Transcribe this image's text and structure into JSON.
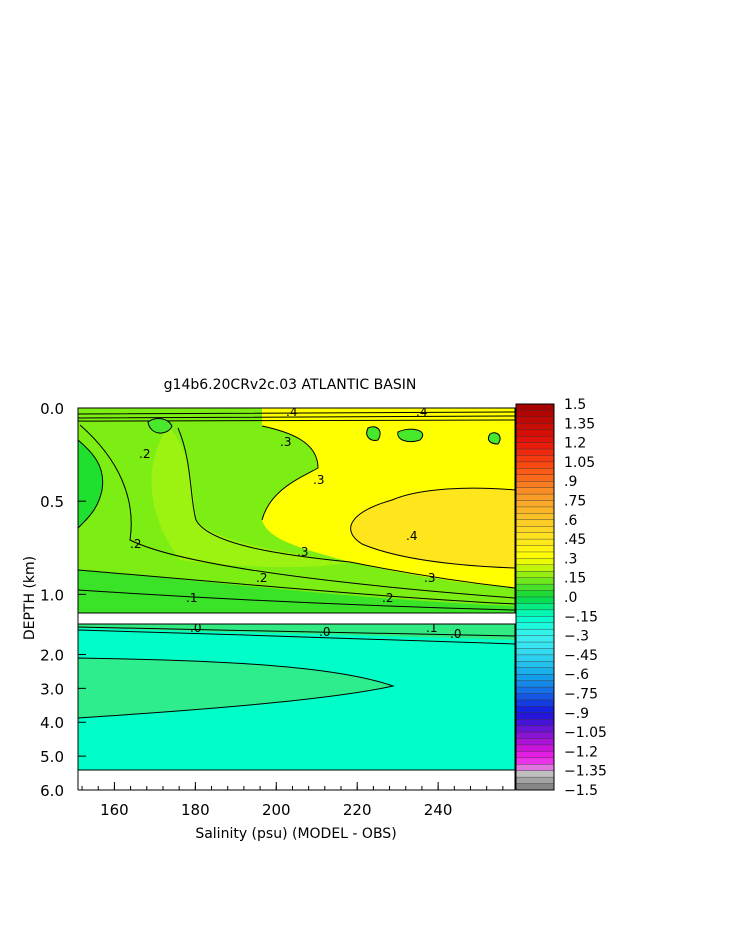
{
  "chart_data": {
    "type": "heatmap",
    "title": "g14b6.20CRv2c.03 ATLANTIC BASIN",
    "xlabel": "Salinity (psu) (MODEL - OBS)",
    "ylabel": "DEPTH (km)",
    "xlim": [
      151,
      259
    ],
    "x_ticks": [
      "160",
      "180",
      "200",
      "220",
      "240"
    ],
    "y_ticks_upper": [
      "0.0",
      "0.5",
      "1.0"
    ],
    "y_ticks_lower": [
      "2.0",
      "3.0",
      "4.0",
      "5.0",
      "6.0"
    ],
    "ylim_upper": [
      0.0,
      1.1
    ],
    "ylim_lower": [
      1.1,
      6.0
    ],
    "colorbar": {
      "min": -1.5,
      "max": 1.5,
      "labels": [
        "1.5",
        "1.35",
        "1.2",
        "1.05",
        ".9",
        ".75",
        ".6",
        ".45",
        ".3",
        ".15",
        ".0",
        "-.15",
        "-.3",
        "-.45",
        "-.6",
        "-.75",
        "-.9",
        "-1.05",
        "-1.2",
        "-1.35",
        "-1.5"
      ]
    },
    "contour_labels_upper": [
      ".4",
      ".4",
      ".3",
      ".3",
      ".3",
      ".2",
      ".2",
      ".2",
      ".1",
      ".4",
      ".3",
      ".2"
    ],
    "contour_labels_lower": [
      ".0",
      ".0",
      ".1",
      ".0"
    ]
  }
}
